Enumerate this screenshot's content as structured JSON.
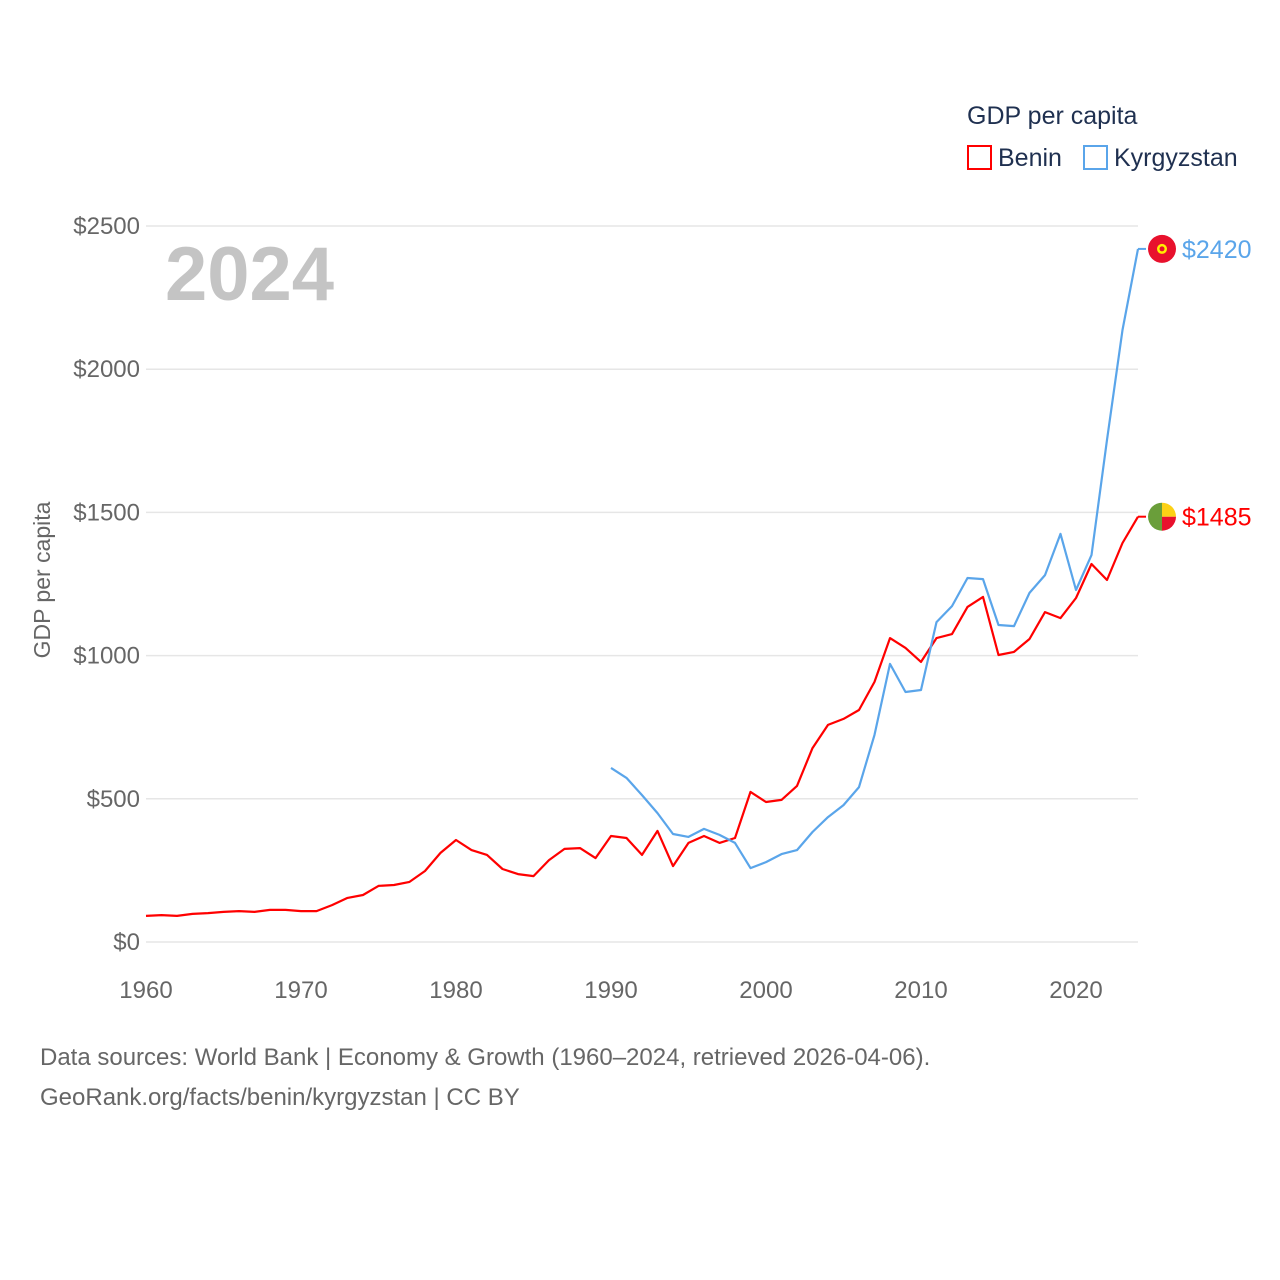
{
  "chart_data": {
    "type": "line",
    "title": "GDP per capita",
    "year_label": "2024",
    "xlabel": "",
    "ylabel": "GDP per capita",
    "xlim": [
      1960,
      2024
    ],
    "ylim": [
      0,
      2500
    ],
    "x_ticks": [
      "1960",
      "1970",
      "1980",
      "1990",
      "2000",
      "2010",
      "2020"
    ],
    "y_ticks": [
      "$0",
      "$500",
      "$1000",
      "$1500",
      "$2000",
      "$2500"
    ],
    "legend_placement": "top-right",
    "series": [
      {
        "name": "Benin",
        "color": "#ff0000",
        "end_label": "$1485",
        "start_year": 1960,
        "values": [
          91,
          94,
          91,
          98,
          101,
          105,
          108,
          105,
          112,
          112,
          108,
          108,
          129,
          154,
          164,
          196,
          199,
          210,
          248,
          311,
          356,
          321,
          304,
          255,
          237,
          230,
          286,
          325,
          328,
          293,
          370,
          363,
          304,
          388,
          265,
          346,
          370,
          346,
          363,
          524,
          489,
          496,
          545,
          677,
          758,
          779,
          810,
          908,
          1061,
          1027,
          978,
          1061,
          1075,
          1170,
          1205,
          1002,
          1013,
          1058,
          1152,
          1131,
          1201,
          1320,
          1264,
          1393,
          1485
        ]
      },
      {
        "name": "Kyrgyzstan",
        "color": "#5aa5ea",
        "end_label": "$2420",
        "start_year": 1990,
        "values": [
          608,
          573,
          513,
          450,
          377,
          367,
          395,
          374,
          346,
          258,
          279,
          307,
          321,
          384,
          436,
          478,
          541,
          723,
          971,
          873,
          880,
          1117,
          1173,
          1271,
          1267,
          1107,
          1103,
          1219,
          1281,
          1425,
          1229,
          1351,
          1753,
          2137,
          2420
        ]
      }
    ]
  },
  "footer": {
    "line1": "Data sources: World Bank | Economy & Growth (1960–2024, retrieved 2026-04-06).",
    "line2": "GeoRank.org/facts/benin/kyrgyzstan | CC BY"
  }
}
